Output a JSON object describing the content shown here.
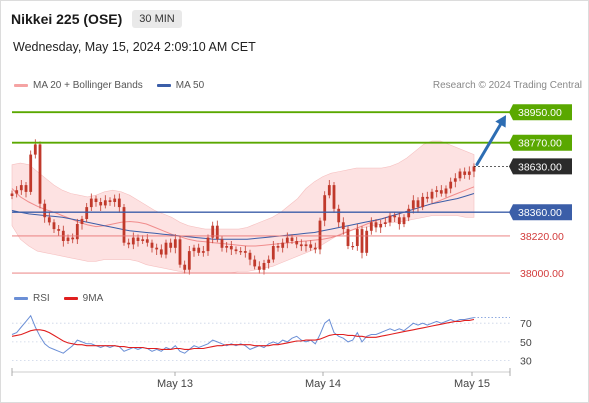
{
  "header": {
    "title": "Nikkei 225 (OSE)",
    "timeframe": "30 MIN",
    "datetime": "Wednesday, May 15, 2024 2:09:10 AM CET"
  },
  "legend": {
    "ma20_label": "MA 20 + Bollinger Bands",
    "ma50_label": "MA 50",
    "credit": "Research © 2024 Trading Central",
    "rsi_label": "RSI",
    "rsi_ma_label": "9MA"
  },
  "colors": {
    "bollinger_fill": "#fde2e2",
    "ma20": "#f08c8c",
    "ma50": "#3b5ea8",
    "resistance": "#5aa800",
    "pivot": "#3b5ea8",
    "support": "#e87373",
    "candle": "#c0392b",
    "current_price": "#2b2b2b",
    "arrow": "#2d6db3",
    "rsi": "#6b8fd6",
    "rsi_ma": "#e01f1f"
  },
  "chart_data": [
    {
      "type": "candlestick",
      "x_labels": [
        "May 13",
        "May 14",
        "May 15"
      ],
      "ylim": [
        37930,
        39040
      ],
      "levels": [
        {
          "value": 38950,
          "label": "38950.00",
          "role": "resistance"
        },
        {
          "value": 38770,
          "label": "38770.00",
          "role": "resistance"
        },
        {
          "value": 38630,
          "label": "38630.00",
          "role": "current"
        },
        {
          "value": 38360,
          "label": "38360.00",
          "role": "pivot"
        },
        {
          "value": 38220,
          "label": "38220.00",
          "role": "support"
        },
        {
          "value": 38000,
          "label": "38000.00",
          "role": "support"
        }
      ],
      "close": [
        38470,
        38490,
        38520,
        38480,
        38700,
        38760,
        38410,
        38330,
        38300,
        38260,
        38250,
        38190,
        38210,
        38200,
        38290,
        38320,
        38390,
        38440,
        38420,
        38400,
        38430,
        38420,
        38440,
        38390,
        38180,
        38170,
        38210,
        38190,
        38200,
        38180,
        38150,
        38140,
        38110,
        38180,
        38150,
        38200,
        38050,
        38020,
        38130,
        38150,
        38120,
        38130,
        38210,
        38280,
        38200,
        38150,
        38160,
        38140,
        38130,
        38130,
        38120,
        38080,
        38040,
        38020,
        38060,
        38080,
        38160,
        38150,
        38180,
        38210,
        38190,
        38170,
        38160,
        38170,
        38150,
        38140,
        38310,
        38460,
        38520,
        38380,
        38300,
        38260,
        38160,
        38160,
        38260,
        38120,
        38250,
        38300,
        38270,
        38290,
        38300,
        38340,
        38330,
        38290,
        38330,
        38380,
        38430,
        38390,
        38450,
        38440,
        38480,
        38490,
        38470,
        38500,
        38540,
        38560,
        38600,
        38580,
        38600,
        38630
      ],
      "ma20": [
        38500,
        38450,
        38420,
        38395,
        38375,
        38360,
        38340,
        38320,
        38300,
        38285,
        38275,
        38280,
        38290,
        38300,
        38305,
        38300,
        38290,
        38270,
        38250,
        38230,
        38215,
        38200,
        38190,
        38185,
        38180,
        38175,
        38170,
        38165,
        38160,
        38160,
        38165,
        38170,
        38175,
        38180,
        38185,
        38190,
        38195,
        38200,
        38210,
        38225,
        38245,
        38265,
        38285,
        38305,
        38320,
        38335,
        38350,
        38365,
        38380,
        38395,
        38410,
        38430,
        38450,
        38470,
        38490,
        38510
      ],
      "ma50": [
        38370,
        38360,
        38350,
        38345,
        38340,
        38335,
        38330,
        38320,
        38310,
        38300,
        38290,
        38280,
        38270,
        38260,
        38250,
        38245,
        38240,
        38235,
        38230,
        38225,
        38220,
        38215,
        38210,
        38205,
        38200,
        38200,
        38200,
        38200,
        38200,
        38205,
        38210,
        38215,
        38220,
        38225,
        38230,
        38235,
        38240,
        38250,
        38260,
        38270,
        38280,
        38290,
        38300,
        38310,
        38320,
        38335,
        38350,
        38365,
        38380,
        38395,
        38410,
        38420,
        38430,
        38440,
        38455,
        38470
      ],
      "bb_upper": [
        38640,
        38650,
        38640,
        38600,
        38560,
        38520,
        38490,
        38470,
        38460,
        38450,
        38460,
        38480,
        38490,
        38480,
        38460,
        38430,
        38400,
        38370,
        38350,
        38330,
        38300,
        38280,
        38270,
        38260,
        38260,
        38260,
        38260,
        38260,
        38270,
        38290,
        38310,
        38330,
        38360,
        38400,
        38440,
        38500,
        38540,
        38570,
        38590,
        38600,
        38610,
        38620,
        38620,
        38620,
        38620,
        38630,
        38650,
        38680,
        38720,
        38760,
        38780,
        38780,
        38760,
        38740,
        38720,
        38700
      ],
      "bb_lower": [
        38280,
        38200,
        38160,
        38130,
        38120,
        38110,
        38100,
        38090,
        38080,
        38070,
        38070,
        38080,
        38080,
        38080,
        38080,
        38070,
        38050,
        38040,
        38030,
        38020,
        38010,
        38000,
        38000,
        38000,
        38000,
        38000,
        38000,
        38010,
        38010,
        38020,
        38030,
        38040,
        38060,
        38080,
        38100,
        38120,
        38140,
        38170,
        38200,
        38230,
        38250,
        38260,
        38270,
        38280,
        38290,
        38300,
        38300,
        38310,
        38320,
        38330,
        38340,
        38340,
        38340,
        38340,
        38330,
        38330
      ]
    },
    {
      "type": "line",
      "name": "RSI",
      "yticks": [
        70,
        50,
        30
      ],
      "ylim": [
        20,
        82
      ],
      "rsi": [
        58,
        60,
        66,
        72,
        78,
        66,
        56,
        48,
        44,
        42,
        40,
        38,
        42,
        46,
        52,
        50,
        48,
        48,
        46,
        44,
        46,
        44,
        46,
        45,
        40,
        42,
        44,
        42,
        44,
        43,
        40,
        42,
        40,
        44,
        42,
        46,
        40,
        38,
        42,
        46,
        44,
        46,
        48,
        52,
        50,
        48,
        46,
        48,
        46,
        48,
        46,
        42,
        44,
        46,
        44,
        48,
        50,
        48,
        52,
        50,
        54,
        56,
        52,
        50,
        52,
        48,
        58,
        70,
        74,
        60,
        56,
        54,
        50,
        52,
        60,
        50,
        56,
        58,
        58,
        60,
        62,
        64,
        62,
        64,
        62,
        66,
        70,
        68,
        70,
        68,
        70,
        72,
        70,
        72,
        74,
        72,
        74,
        74,
        75,
        76
      ],
      "rsi_ma": [
        56,
        57,
        58,
        60,
        62,
        63,
        63,
        62,
        60,
        57,
        54,
        51,
        49,
        48,
        47,
        47,
        46,
        46,
        46,
        46,
        46,
        46,
        46,
        45,
        45,
        44,
        44,
        44,
        44,
        43,
        43,
        43,
        42,
        42,
        42,
        43,
        43,
        42,
        42,
        43,
        43,
        43,
        44,
        45,
        46,
        46,
        47,
        47,
        47,
        47,
        47,
        47,
        46,
        46,
        46,
        46,
        47,
        47,
        48,
        49,
        50,
        51,
        51,
        52,
        52,
        52,
        53,
        55,
        57,
        58,
        58,
        58,
        57,
        57,
        56,
        56,
        55,
        55,
        55,
        56,
        57,
        58,
        59,
        60,
        61,
        62,
        63,
        64,
        65,
        66,
        67,
        68,
        69,
        70,
        71,
        72,
        72,
        73,
        73,
        74
      ]
    }
  ]
}
